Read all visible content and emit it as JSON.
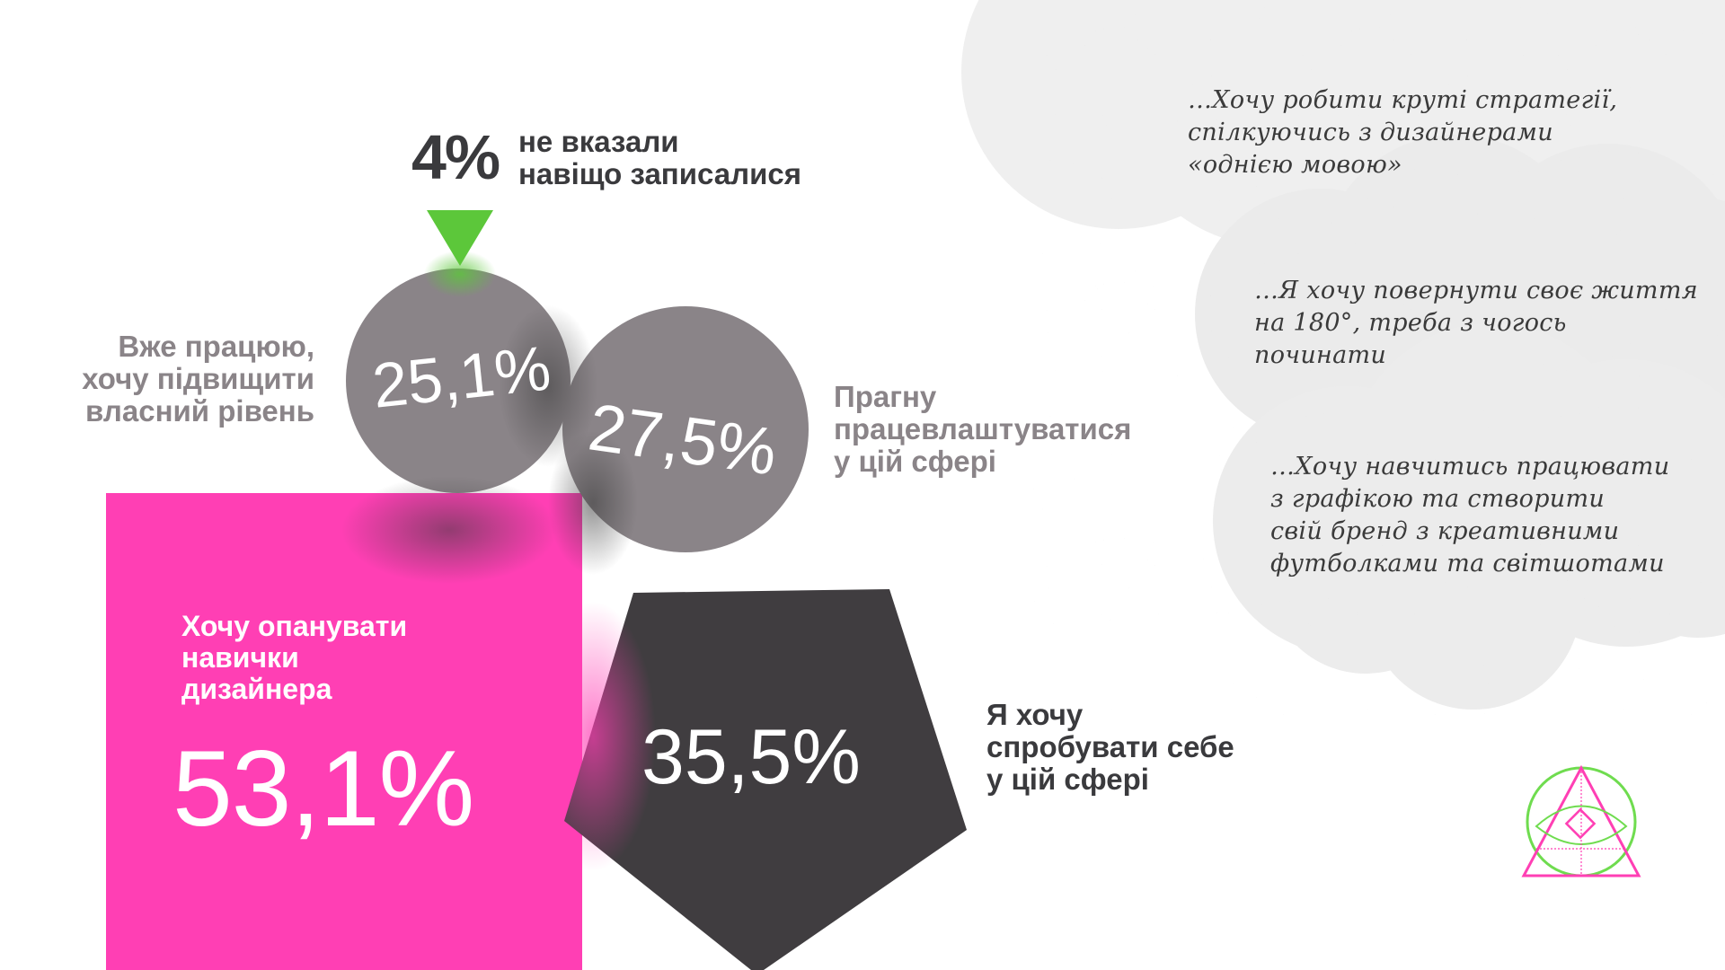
{
  "unknown_pct": {
    "value": "4%",
    "label_line1": "не вказали",
    "label_line2": "навіщо записалися"
  },
  "segments": {
    "already_working": {
      "value": "25,1%",
      "line1": "Вже працюю,",
      "line2": "хочу підвищити",
      "line3": "власний рівень"
    },
    "get_job": {
      "value": "27,5%",
      "line1": "Прагну",
      "line2": "працевлаштуватися",
      "line3": "у цій сфері"
    },
    "learn_skills": {
      "value": "53,1%",
      "line1": "Хочу опанувати",
      "line2": "навички",
      "line3": "дизайнера"
    },
    "try_self": {
      "value": "35,5%",
      "line1": "Я хочу",
      "line2": "спробувати себе",
      "line3": "у цій сфері"
    }
  },
  "quotes": [
    {
      "line1": "…Хочу робити круті стратегії,",
      "line2": "спілкуючись з дизайнерами",
      "line3": "«однією мовою»"
    },
    {
      "line1": "…Я хочу повернути своє життя",
      "line2": "на 180°, треба з чогось",
      "line3": "починати"
    },
    {
      "line1": "…Хочу навчитись працювати",
      "line2": "з графікою та створити",
      "line3": "свій бренд з креативними",
      "line4": "футболками та світшотами"
    }
  ],
  "colors": {
    "pink": "#ff3fb4",
    "dark": "#403d40",
    "grey_circle": "#8a8488",
    "green": "#5cc73a",
    "cloud": "#efefef",
    "logo_green": "#6fdc4f",
    "logo_pink": "#ff3fb4"
  },
  "icons": {
    "arrow": "down-triangle-icon",
    "logo": "triangle-eye-logo-icon"
  }
}
